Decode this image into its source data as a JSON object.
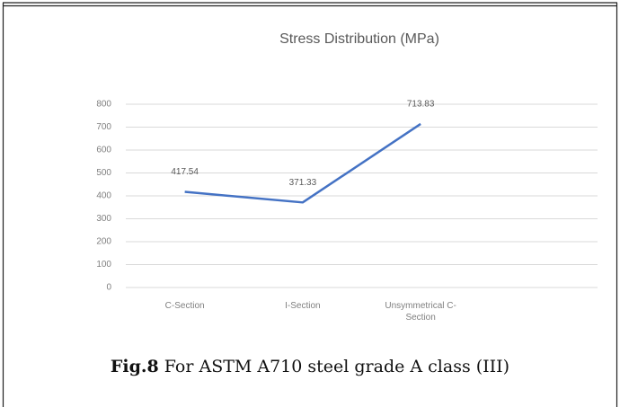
{
  "chart_data": {
    "type": "line",
    "title": "Stress Distribution (MPa)",
    "categories": [
      "C-Section",
      "I-Section",
      "Unsymmetrical C-Section"
    ],
    "series": [
      {
        "name": "Stress",
        "color": "#4472c4",
        "values": [
          417.54,
          371.33,
          713.83
        ]
      }
    ],
    "ylim": [
      0,
      800
    ],
    "yticks": [
      0,
      100,
      200,
      300,
      400,
      500,
      600,
      700,
      800
    ],
    "grid": true
  },
  "caption": {
    "label": "Fig.8",
    "text": "For ASTM A710 steel grade A class (III)"
  }
}
